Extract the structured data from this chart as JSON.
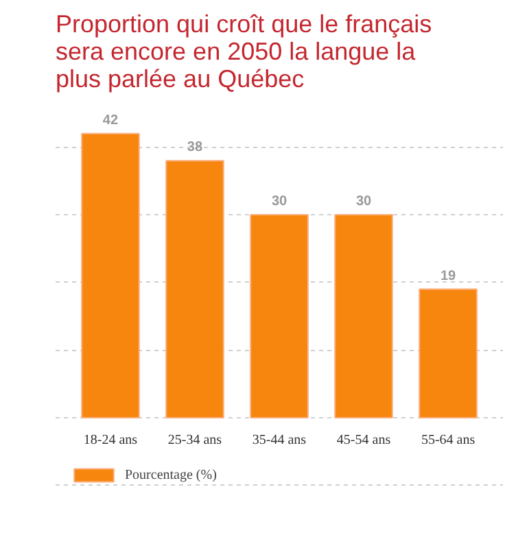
{
  "chart_data": {
    "type": "bar",
    "title": "Proportion qui croît que le français sera encore en 2050 la langue la plus parlée au Québec",
    "categories": [
      "18-24 ans",
      "25-34 ans",
      "35-44 ans",
      "45-54 ans",
      "55-64 ans"
    ],
    "series": [
      {
        "name": "Pourcentage (%)",
        "color": "#f7860f",
        "values": [
          42,
          38,
          30,
          30,
          19
        ]
      }
    ],
    "tick_labels": "x",
    "grid": "y",
    "legend": "bottom left",
    "data_labels": true
  }
}
